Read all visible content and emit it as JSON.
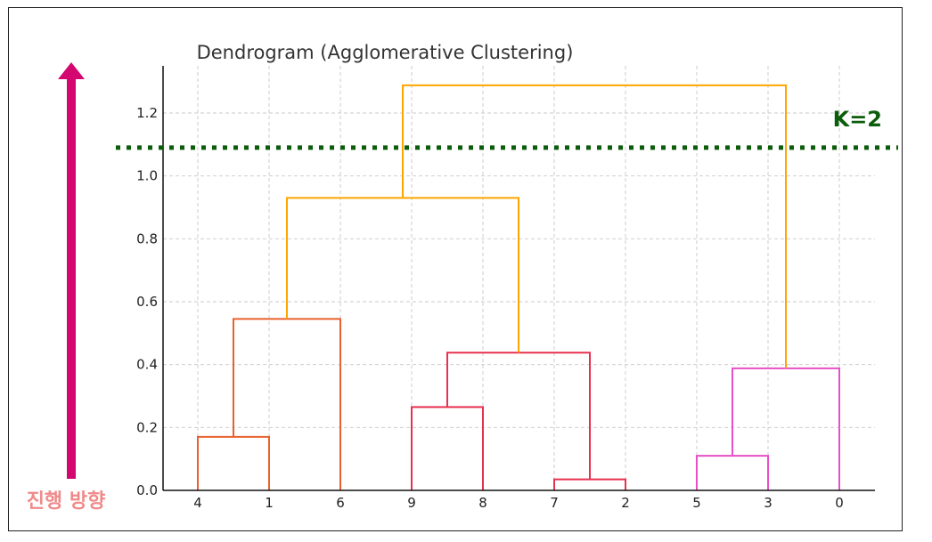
{
  "chart_data": {
    "type": "dendrogram",
    "title": "Dendrogram (Agglomerative Clustering)",
    "leaf_order": [
      "4",
      "1",
      "6",
      "9",
      "8",
      "7",
      "2",
      "5",
      "3",
      "0"
    ],
    "ylim": [
      0,
      1.35
    ],
    "yticks": [
      0.0,
      0.2,
      0.4,
      0.6,
      0.8,
      1.0,
      1.2
    ],
    "ytick_labels": [
      "0.0",
      "0.2",
      "0.4",
      "0.6",
      "0.8",
      "1.0",
      "1.2"
    ],
    "grid": true,
    "merges": [
      {
        "left": "4",
        "right": "1",
        "height": 0.17,
        "color": "#e8612c"
      },
      {
        "left": "4+1",
        "right": "6",
        "height": 0.545,
        "color": "#e8612c"
      },
      {
        "left": "9",
        "right": "8",
        "height": 0.265,
        "color": "#e8304f"
      },
      {
        "left": "7",
        "right": "2",
        "height": 0.035,
        "color": "#e8304f"
      },
      {
        "left": "9+8",
        "right": "7+2",
        "height": 0.438,
        "color": "#e8304f"
      },
      {
        "left": "4+1+6",
        "right": "9+8+7+2",
        "height": 0.93,
        "color": "#ffa500"
      },
      {
        "left": "5",
        "right": "3",
        "height": 0.11,
        "color": "#e84fc8"
      },
      {
        "left": "5+3",
        "right": "0",
        "height": 0.388,
        "color": "#e84fc8"
      },
      {
        "left": "4+1+6+9+8+7+2",
        "right": "5+3+0",
        "height": 1.288,
        "color": "#ffa500"
      }
    ],
    "cut_line": {
      "y": 1.09,
      "label": "K=2",
      "color": "#0b5d0b"
    },
    "direction_arrow": {
      "label": "진행 방향",
      "color": "#d4066f"
    }
  }
}
